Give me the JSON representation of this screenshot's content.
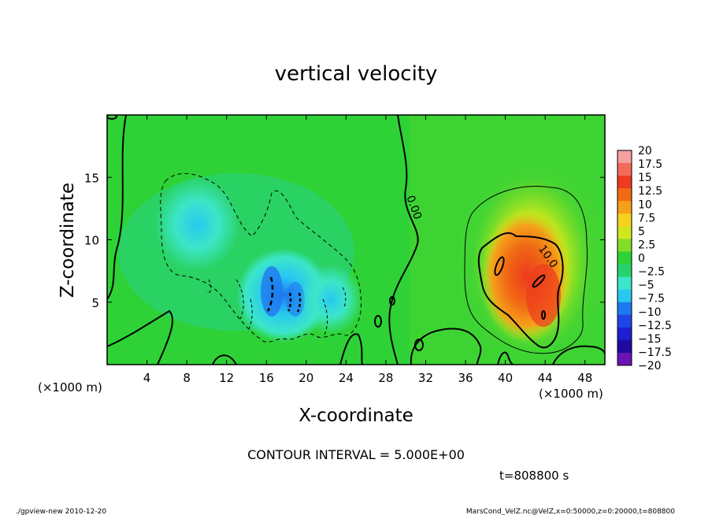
{
  "chart_data": {
    "type": "heatmap",
    "title": "vertical velocity",
    "xlabel": "X-coordinate",
    "ylabel": "Z-coordinate",
    "x_unit_left": "(×1000 m)",
    "x_unit_right": "(×1000 m)",
    "xlim": [
      0,
      50
    ],
    "ylim": [
      0,
      20
    ],
    "x_ticks": [
      4,
      8,
      12,
      16,
      20,
      24,
      28,
      32,
      36,
      40,
      44,
      48
    ],
    "y_ticks": [
      5,
      10,
      15
    ],
    "contour_labels": [
      {
        "text": "0.00",
        "x": 30.5,
        "y": 12.5
      },
      {
        "text": "10.0",
        "x": 44,
        "y": 8.5
      }
    ],
    "contour_interval_text": "CONTOUR INTERVAL = 5.000E+00",
    "time_text": "t=808800 s",
    "colorbar": {
      "labels": [
        "20",
        "17.5",
        "15",
        "12.5",
        "10",
        "7.5",
        "5",
        "2.5",
        "0",
        "−2.5",
        "−5",
        "−7.5",
        "−10",
        "−12.5",
        "−15",
        "−17.5",
        "−20"
      ],
      "colors": [
        "#f5a0a0",
        "#f26a5a",
        "#ee3a1e",
        "#f06a14",
        "#f5a01a",
        "#f5d21e",
        "#d2e61e",
        "#82dc28",
        "#2ed236",
        "#28d26e",
        "#3ce6c8",
        "#28c8f0",
        "#1e78f0",
        "#1e46e6",
        "#1e1ed2",
        "#1e0aa0",
        "#6a14b4"
      ]
    },
    "grid": false
  },
  "footer": {
    "left": "./gpview-new   2010-12-20",
    "right": "MarsCond_VelZ.nc@VelZ,x=0:50000,z=0:20000,t=808800"
  }
}
